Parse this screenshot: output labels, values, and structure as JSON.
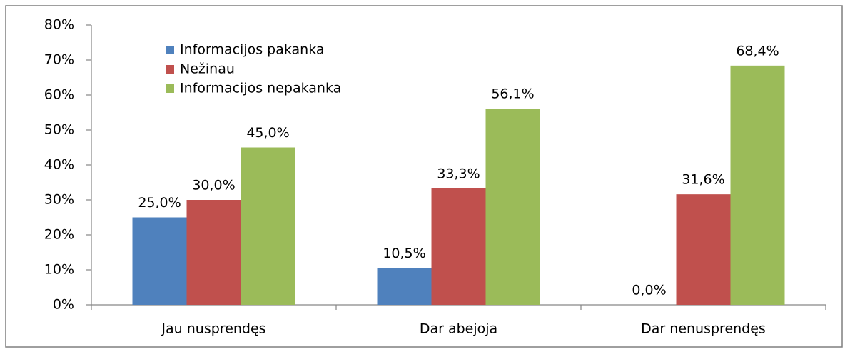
{
  "chart_data": {
    "type": "bar",
    "categories": [
      "Jau nusprendęs",
      "Dar abejoja",
      "Dar nenusprendęs"
    ],
    "series": [
      {
        "name": "Informacijos pakanka",
        "color": "#4f81bd",
        "values": [
          25.0,
          10.5,
          0.0
        ],
        "value_labels": [
          "25,0%",
          "10,5%",
          "0,0%"
        ]
      },
      {
        "name": "Nežinau",
        "color": "#c0504d",
        "values": [
          30.0,
          33.3,
          31.6
        ],
        "value_labels": [
          "30,0%",
          "33,3%",
          "31,6%"
        ]
      },
      {
        "name": "Informacijos nepakanka",
        "color": "#9bbb59",
        "values": [
          45.0,
          56.1,
          68.4
        ],
        "value_labels": [
          "45,0%",
          "56,1%",
          "68,4%"
        ]
      }
    ],
    "ylim": [
      0,
      80
    ],
    "yticks": [
      {
        "value": 0,
        "label": "0%"
      },
      {
        "value": 10,
        "label": "10%"
      },
      {
        "value": 20,
        "label": "20%"
      },
      {
        "value": 30,
        "label": "30%"
      },
      {
        "value": 40,
        "label": "40%"
      },
      {
        "value": 50,
        "label": "50%"
      },
      {
        "value": 60,
        "label": "60%"
      },
      {
        "value": 70,
        "label": "70%"
      },
      {
        "value": 80,
        "label": "80%"
      }
    ],
    "legend": "upper left"
  }
}
